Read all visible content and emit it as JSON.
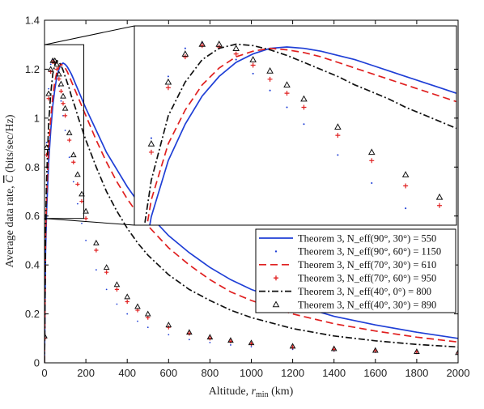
{
  "chart_data": {
    "type": "line",
    "title": "",
    "xlabel": "Altitude, r_min (km)",
    "ylabel": "Average data rate, C̄ (bits/sec/Hz)",
    "xlim": [
      0,
      2000
    ],
    "ylim": [
      0,
      1.4
    ],
    "xticks": [
      0,
      200,
      400,
      600,
      800,
      1000,
      1200,
      1400,
      1600,
      1800,
      2000
    ],
    "yticks": [
      0,
      0.2,
      0.4,
      0.6,
      0.8,
      1,
      1.2,
      1.4
    ],
    "grid": false,
    "legend_position": "bottom-right",
    "series": [
      {
        "name": "Theorem 3, N_eff(90°, 30°) = 550",
        "color": "#1f3fd6",
        "style": "solid",
        "x": [
          0,
          5,
          10,
          20,
          30,
          40,
          50,
          60,
          70,
          80,
          90,
          100,
          110,
          120,
          130,
          140,
          150,
          160,
          170,
          180,
          190,
          200,
          250,
          300,
          350,
          400,
          450,
          500,
          600,
          700,
          800,
          900,
          1000,
          1200,
          1400,
          1600,
          1800,
          2000
        ],
        "y": [
          0,
          0.45,
          0.62,
          0.82,
          0.95,
          1.05,
          1.12,
          1.17,
          1.2,
          1.22,
          1.225,
          1.22,
          1.21,
          1.195,
          1.18,
          1.16,
          1.14,
          1.12,
          1.1,
          1.08,
          1.06,
          1.04,
          0.95,
          0.86,
          0.79,
          0.72,
          0.66,
          0.61,
          0.52,
          0.45,
          0.39,
          0.34,
          0.3,
          0.24,
          0.19,
          0.155,
          0.125,
          0.1
        ]
      },
      {
        "name": "Theorem 3, N_eff(90°, 60°) = 1150",
        "color": "#1f3fd6",
        "style": "dots",
        "x": [
          0,
          10,
          20,
          30,
          40,
          50,
          60,
          70,
          80,
          90,
          100,
          120,
          140,
          160,
          180,
          200,
          250,
          300,
          350,
          400,
          450,
          500,
          600,
          700,
          800,
          900,
          1000,
          1200,
          1400,
          1600,
          1800,
          2000
        ],
        "y": [
          0,
          0.9,
          1.12,
          1.22,
          1.24,
          1.22,
          1.18,
          1.13,
          1.07,
          1.01,
          0.95,
          0.84,
          0.74,
          0.65,
          0.57,
          0.5,
          0.38,
          0.3,
          0.24,
          0.2,
          0.17,
          0.145,
          0.115,
          0.095,
          0.083,
          0.073,
          0.066,
          0.055,
          0.048,
          0.043,
          0.039,
          0.036
        ]
      },
      {
        "name": "Theorem 3, N_eff(70°, 30°) = 610",
        "color": "#e02020",
        "style": "dashed",
        "x": [
          0,
          5,
          10,
          20,
          30,
          40,
          50,
          60,
          70,
          80,
          90,
          100,
          110,
          120,
          130,
          140,
          150,
          160,
          170,
          180,
          190,
          200,
          250,
          300,
          350,
          400,
          450,
          500,
          600,
          700,
          800,
          900,
          1000,
          1200,
          1400,
          1600,
          1800,
          2000
        ],
        "y": [
          0,
          0.5,
          0.68,
          0.88,
          1.0,
          1.09,
          1.15,
          1.19,
          1.21,
          1.22,
          1.215,
          1.205,
          1.19,
          1.17,
          1.15,
          1.13,
          1.11,
          1.09,
          1.07,
          1.05,
          1.03,
          1.01,
          0.91,
          0.82,
          0.74,
          0.67,
          0.61,
          0.56,
          0.47,
          0.4,
          0.34,
          0.29,
          0.255,
          0.2,
          0.16,
          0.13,
          0.105,
          0.085
        ]
      },
      {
        "name": "Theorem 3, N_eff(70°, 60°) = 950",
        "color": "#e02020",
        "style": "plus",
        "x": [
          0,
          10,
          20,
          30,
          40,
          50,
          60,
          70,
          80,
          90,
          100,
          120,
          140,
          160,
          180,
          200,
          250,
          300,
          350,
          400,
          450,
          500,
          600,
          700,
          800,
          900,
          1000,
          1200,
          1400,
          1600,
          1800,
          2000
        ],
        "y": [
          0.1,
          0.85,
          1.08,
          1.19,
          1.23,
          1.225,
          1.2,
          1.16,
          1.11,
          1.06,
          1.01,
          0.91,
          0.82,
          0.73,
          0.66,
          0.59,
          0.46,
          0.37,
          0.3,
          0.25,
          0.215,
          0.185,
          0.145,
          0.12,
          0.1,
          0.088,
          0.078,
          0.064,
          0.055,
          0.049,
          0.044,
          0.04
        ]
      },
      {
        "name": "Theorem 3, N_eff(40°, 0°) = 800",
        "color": "#111111",
        "style": "dashdot",
        "x": [
          0,
          5,
          10,
          20,
          30,
          40,
          50,
          60,
          70,
          80,
          90,
          100,
          110,
          120,
          130,
          140,
          150,
          160,
          170,
          180,
          190,
          200,
          250,
          300,
          350,
          400,
          450,
          500,
          600,
          700,
          800,
          900,
          1000,
          1200,
          1400,
          1600,
          1800,
          2000
        ],
        "y": [
          0,
          0.55,
          0.75,
          0.98,
          1.1,
          1.18,
          1.22,
          1.235,
          1.23,
          1.215,
          1.195,
          1.17,
          1.145,
          1.12,
          1.09,
          1.065,
          1.04,
          1.01,
          0.985,
          0.96,
          0.935,
          0.91,
          0.8,
          0.7,
          0.62,
          0.55,
          0.49,
          0.44,
          0.36,
          0.3,
          0.255,
          0.215,
          0.185,
          0.14,
          0.11,
          0.09,
          0.075,
          0.065
        ]
      },
      {
        "name": "Theorem 3, N_eff(40°, 30°) = 890",
        "color": "#111111",
        "style": "triangle",
        "x": [
          0,
          10,
          20,
          30,
          40,
          50,
          60,
          70,
          80,
          90,
          100,
          120,
          140,
          160,
          180,
          200,
          250,
          300,
          350,
          400,
          450,
          500,
          600,
          700,
          800,
          900,
          1000,
          1200,
          1400,
          1600,
          1800,
          2000
        ],
        "y": [
          0.11,
          0.88,
          1.1,
          1.2,
          1.235,
          1.235,
          1.22,
          1.18,
          1.14,
          1.09,
          1.04,
          0.94,
          0.85,
          0.77,
          0.69,
          0.62,
          0.49,
          0.39,
          0.32,
          0.27,
          0.23,
          0.2,
          0.155,
          0.125,
          0.105,
          0.092,
          0.082,
          0.068,
          0.058,
          0.051,
          0.046,
          0.042
        ]
      }
    ],
    "inset": {
      "source_xlim": [
        0,
        190
      ],
      "source_ylim": [
        0.59,
        1.3
      ]
    }
  }
}
